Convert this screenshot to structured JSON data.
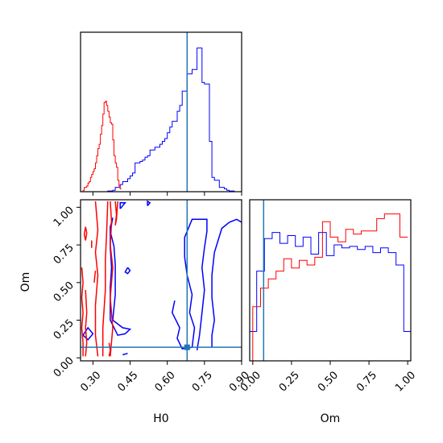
{
  "chart_data": {
    "type": "corner",
    "colors": {
      "blue": "#0000ff",
      "red": "#ff0000",
      "truth": "#1f77b4"
    },
    "parameters": [
      "H0",
      "Om"
    ],
    "truth": {
      "H0": 0.68,
      "Om": 0.07
    },
    "panels": {
      "h0_hist": {
        "type": "histogram",
        "xlim": [
          0.25,
          0.9
        ],
        "ylim": [
          0,
          1
        ],
        "blue": {
          "edges": [
            0.25,
            0.26,
            0.27,
            0.28,
            0.29,
            0.3,
            0.31,
            0.32,
            0.33,
            0.34,
            0.35,
            0.36,
            0.37,
            0.38,
            0.39,
            0.4,
            0.41,
            0.42,
            0.43,
            0.44,
            0.45,
            0.46,
            0.47,
            0.48,
            0.49,
            0.5,
            0.51,
            0.52,
            0.53,
            0.54,
            0.55,
            0.56,
            0.57,
            0.58,
            0.59,
            0.6,
            0.61,
            0.62,
            0.63,
            0.64,
            0.65,
            0.66,
            0.67,
            0.68,
            0.69,
            0.7,
            0.71,
            0.72,
            0.73,
            0.74,
            0.75,
            0.76,
            0.77,
            0.78,
            0.79,
            0.8,
            0.81,
            0.82,
            0.83,
            0.84,
            0.85,
            0.86,
            0.87,
            0.88,
            0.89,
            0.9
          ],
          "counts": [
            0,
            0,
            0,
            0,
            0,
            0,
            0,
            0,
            0,
            0,
            0,
            0.005,
            0.005,
            0.01,
            0.03,
            0.03,
            0.05,
            0.07,
            0.07,
            0.09,
            0.11,
            0.13,
            0.2,
            0.2,
            0.21,
            0.22,
            0.24,
            0.25,
            0.29,
            0.29,
            0.31,
            0.31,
            0.33,
            0.35,
            0.37,
            0.41,
            0.45,
            0.49,
            0.49,
            0.56,
            0.6,
            0.7,
            0.7,
            0.82,
            0.82,
            0.85,
            0.85,
            1.0,
            1.0,
            0.76,
            0.75,
            0.75,
            0.35,
            0.1,
            0.08,
            0.08,
            0.03,
            0.03,
            0.02,
            0.01,
            0.005,
            0.005,
            0.0,
            0.0,
            0.0
          ]
        },
        "red": {
          "edges": [
            0.25,
            0.255,
            0.26,
            0.265,
            0.27,
            0.275,
            0.28,
            0.285,
            0.29,
            0.295,
            0.3,
            0.305,
            0.31,
            0.315,
            0.32,
            0.325,
            0.33,
            0.335,
            0.34,
            0.345,
            0.35,
            0.355,
            0.36,
            0.365,
            0.37,
            0.375,
            0.38,
            0.385,
            0.39,
            0.395,
            0.4,
            0.405,
            0.41,
            0.415
          ],
          "counts": [
            0,
            0,
            0.01,
            0.03,
            0.03,
            0.04,
            0.06,
            0.07,
            0.1,
            0.12,
            0.14,
            0.16,
            0.2,
            0.25,
            0.3,
            0.33,
            0.4,
            0.46,
            0.54,
            0.62,
            0.63,
            0.6,
            0.56,
            0.52,
            0.48,
            0.47,
            0.36,
            0.25,
            0.2,
            0.17,
            0.08,
            0.04,
            0.02
          ]
        }
      },
      "om_hist": {
        "type": "histogram",
        "xlim": [
          -0.02,
          1.02
        ],
        "ylim": [
          0,
          1
        ],
        "blue": {
          "edges": [
            -0.02,
            0.0,
            0.025,
            0.05,
            0.075,
            0.1,
            0.125,
            0.15,
            0.175,
            0.2,
            0.225,
            0.25,
            0.275,
            0.3,
            0.325,
            0.35,
            0.375,
            0.4,
            0.425,
            0.45,
            0.475,
            0.5,
            0.525,
            0.55,
            0.575,
            0.6,
            0.625,
            0.65,
            0.675,
            0.7,
            0.725,
            0.75,
            0.775,
            0.8,
            0.825,
            0.85,
            0.875,
            0.9,
            0.925,
            0.95,
            0.975,
            1.0,
            1.02
          ],
          "counts": [
            0.19,
            0.19,
            0.58,
            0.58,
            0.79,
            0.79,
            0.83,
            0.83,
            0.76,
            0.76,
            0.81,
            0.81,
            0.74,
            0.74,
            0.8,
            0.8,
            0.69,
            0.69,
            0.83,
            0.83,
            0.68,
            0.68,
            0.75,
            0.75,
            0.73,
            0.73,
            0.74,
            0.74,
            0.72,
            0.72,
            0.74,
            0.74,
            0.7,
            0.7,
            0.73,
            0.73,
            0.7,
            0.7,
            0.62,
            0.62,
            0.19,
            0.19
          ]
        },
        "red": {
          "edges": [
            -0.02,
            0.0,
            0.025,
            0.05,
            0.075,
            0.1,
            0.125,
            0.15,
            0.175,
            0.2,
            0.225,
            0.25,
            0.275,
            0.3,
            0.325,
            0.35,
            0.375,
            0.4,
            0.425,
            0.45,
            0.475,
            0.5,
            0.525,
            0.55,
            0.575,
            0.6,
            0.625,
            0.65,
            0.675,
            0.7,
            0.725,
            0.75,
            0.775,
            0.8,
            0.825,
            0.85,
            0.875,
            0.9,
            0.925,
            0.95,
            0.975,
            1.0
          ],
          "counts": [
            0,
            0.35,
            0.35,
            0.47,
            0.47,
            0.53,
            0.53,
            0.58,
            0.58,
            0.66,
            0.66,
            0.6,
            0.6,
            0.65,
            0.65,
            0.62,
            0.62,
            0.67,
            0.67,
            0.9,
            0.9,
            0.8,
            0.8,
            0.77,
            0.77,
            0.85,
            0.85,
            0.82,
            0.82,
            0.84,
            0.84,
            0.84,
            0.84,
            0.92,
            0.92,
            0.95,
            0.95,
            0.95,
            0.95,
            0.8,
            0.8
          ]
        }
      },
      "joint": {
        "type": "contour",
        "xlim": [
          0.25,
          0.9
        ],
        "ylim": [
          -0.02,
          1.05
        ],
        "blue_contours": [
          [
            [
              0.41,
              0.99
            ],
            [
              0.41,
              1.03
            ],
            [
              0.43,
              1.03
            ],
            [
              0.41,
              0.99
            ]
          ],
          [
            [
              0.52,
              1.01
            ],
            [
              0.52,
              1.04
            ],
            [
              0.53,
              1.03
            ],
            [
              0.52,
              1.01
            ]
          ],
          [
            [
              0.38,
              0.93
            ],
            [
              0.37,
              0.84
            ],
            [
              0.385,
              0.74
            ],
            [
              0.39,
              0.62
            ],
            [
              0.39,
              0.42
            ],
            [
              0.38,
              0.25
            ],
            [
              0.42,
              0.2
            ],
            [
              0.45,
              0.19
            ],
            [
              0.43,
              0.16
            ],
            [
              0.4,
              0.15
            ],
            [
              0.37,
              0.25
            ],
            [
              0.37,
              0.47
            ],
            [
              0.375,
              0.6
            ],
            [
              0.37,
              0.73
            ],
            [
              0.37,
              0.87
            ],
            [
              0.38,
              0.93
            ]
          ],
          [
            [
              0.44,
              0.6
            ],
            [
              0.45,
              0.58
            ],
            [
              0.44,
              0.56
            ],
            [
              0.43,
              0.57
            ],
            [
              0.44,
              0.6
            ]
          ],
          [
            [
              0.26,
              0.15
            ],
            [
              0.28,
              0.2
            ],
            [
              0.3,
              0.16
            ],
            [
              0.28,
              0.12
            ],
            [
              0.26,
              0.15
            ]
          ],
          [
            [
              0.63,
              0.38
            ],
            [
              0.62,
              0.3
            ],
            [
              0.65,
              0.2
            ],
            [
              0.64,
              0.13
            ],
            [
              0.66,
              0.06
            ],
            [
              0.7,
              0.07
            ],
            [
              0.71,
              0.2
            ],
            [
              0.69,
              0.3
            ],
            [
              0.7,
              0.42
            ],
            [
              0.68,
              0.55
            ],
            [
              0.67,
              0.67
            ],
            [
              0.67,
              0.8
            ],
            [
              0.7,
              0.92
            ],
            [
              0.76,
              0.92
            ],
            [
              0.76,
              0.84
            ],
            [
              0.75,
              0.73
            ],
            [
              0.74,
              0.6
            ],
            [
              0.75,
              0.45
            ],
            [
              0.74,
              0.3
            ],
            [
              0.73,
              0.15
            ],
            [
              0.72,
              0.05
            ]
          ],
          [
            [
              0.78,
              0.07
            ],
            [
              0.78,
              0.15
            ],
            [
              0.79,
              0.25
            ],
            [
              0.78,
              0.4
            ],
            [
              0.78,
              0.55
            ],
            [
              0.79,
              0.7
            ],
            [
              0.82,
              0.86
            ],
            [
              0.85,
              0.9
            ],
            [
              0.88,
              0.92
            ],
            [
              0.9,
              0.9
            ]
          ],
          [
            [
              0.42,
              0.02
            ],
            [
              0.44,
              0.03
            ]
          ]
        ],
        "red_contours": [
          [
            [
              0.26,
              0.01
            ],
            [
              0.26,
              0.1
            ],
            [
              0.255,
              0.2
            ],
            [
              0.26,
              0.3
            ],
            [
              0.255,
              0.4
            ],
            [
              0.26,
              0.5
            ],
            [
              0.255,
              0.6
            ]
          ],
          [
            [
              0.27,
              0.78
            ],
            [
              0.275,
              0.83
            ],
            [
              0.27,
              0.87
            ],
            [
              0.265,
              0.82
            ],
            [
              0.27,
              0.78
            ]
          ],
          [
            [
              0.27,
              0.01
            ],
            [
              0.275,
              0.1
            ],
            [
              0.27,
              0.2
            ],
            [
              0.275,
              0.3
            ],
            [
              0.27,
              0.45
            ]
          ],
          [
            [
              0.295,
              0.73
            ],
            [
              0.295,
              0.78
            ]
          ],
          [
            [
              0.305,
              0.5
            ],
            [
              0.31,
              0.58
            ]
          ],
          [
            [
              0.32,
              0.01
            ],
            [
              0.31,
              0.15
            ],
            [
              0.31,
              0.35
            ],
            [
              0.32,
              0.55
            ],
            [
              0.31,
              0.7
            ],
            [
              0.32,
              0.85
            ],
            [
              0.31,
              1.04
            ]
          ],
          [
            [
              0.34,
              0.01
            ],
            [
              0.34,
              0.2
            ],
            [
              0.35,
              0.45
            ],
            [
              0.35,
              0.65
            ],
            [
              0.355,
              0.82
            ],
            [
              0.36,
              1.04
            ]
          ],
          [
            [
              0.37,
              1.04
            ],
            [
              0.375,
              0.9
            ],
            [
              0.37,
              0.75
            ],
            [
              0.38,
              0.6
            ],
            [
              0.37,
              0.4
            ],
            [
              0.38,
              0.2
            ],
            [
              0.37,
              0.01
            ]
          ],
          [
            [
              0.39,
              1.04
            ],
            [
              0.395,
              0.95
            ],
            [
              0.39,
              0.88
            ],
            [
              0.395,
              0.92
            ],
            [
              0.4,
              1.04
            ]
          ],
          [
            [
              0.365,
              0.1
            ],
            [
              0.37,
              0.05
            ],
            [
              0.365,
              0.01
            ]
          ]
        ]
      }
    },
    "axes": {
      "h0": {
        "label": "H0",
        "ticks": [
          0.3,
          0.45,
          0.6,
          0.75,
          0.9
        ],
        "tick_labels": [
          "0.30",
          "0.45",
          "0.60",
          "0.75",
          "0.90"
        ]
      },
      "om_y": {
        "label": "Om",
        "ticks": [
          0.0,
          0.25,
          0.5,
          0.75,
          1.0
        ],
        "tick_labels": [
          "0.00",
          "0.25",
          "0.50",
          "0.75",
          "1.00"
        ]
      },
      "om_x": {
        "label": "Om",
        "ticks": [
          0.0,
          0.25,
          0.5,
          0.75,
          1.0
        ],
        "tick_labels": [
          "0.00",
          "0.25",
          "0.50",
          "0.75",
          "1.00"
        ]
      }
    }
  }
}
